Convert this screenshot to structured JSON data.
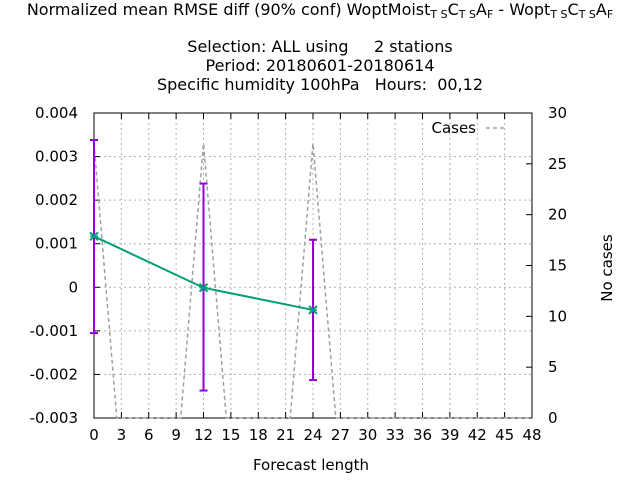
{
  "chart_data": {
    "type": "line",
    "title": {
      "line1": {
        "prefix": "Normalized mean RMSE diff (90% conf) WoptMoist",
        "sub1": "T S",
        "mid1": "C",
        "sub2": "T S",
        "mid2": "A",
        "sub3": "F",
        "join": " - Wopt",
        "sub4": "T S",
        "mid3": "C",
        "sub5": "T S",
        "mid4": "A",
        "sub6": "F"
      },
      "line2": "Selection: ALL using     2 stations",
      "line3": "Period: 20180601-20180614",
      "line4": "Specific humidity 100hPa   Hours:  00,12"
    },
    "xlabel": "Forecast length",
    "ylabel": "",
    "y2label": "No cases",
    "xlim": [
      0,
      48
    ],
    "ylim": [
      -0.003,
      0.004
    ],
    "y2lim": [
      0,
      30
    ],
    "xticks": [
      "0",
      "3",
      "6",
      "9",
      "12",
      "15",
      "18",
      "21",
      "24",
      "27",
      "30",
      "33",
      "36",
      "39",
      "42",
      "45",
      "48"
    ],
    "yticks": [
      "0.004",
      "0.003",
      "0.002",
      "0.001",
      "0",
      "-0.001",
      "-0.002",
      "-0.003"
    ],
    "y2ticks": [
      "30",
      "25",
      "20",
      "15",
      "10",
      "5",
      "0"
    ],
    "grid": true,
    "legend_position": "top-right",
    "series": [
      {
        "name": "",
        "color": "#009e73",
        "errorbar_color": "#9400d3",
        "x": [
          0,
          12,
          24
        ],
        "y": [
          0.00117,
          -1e-05,
          -0.00052
        ],
        "err_low": [
          -0.00105,
          -0.00237,
          -0.00213
        ],
        "err_high": [
          0.00338,
          0.00238,
          0.00109
        ]
      },
      {
        "name": "Cases",
        "color": "#a0a0a0",
        "dashed": true,
        "axis": "y2",
        "x": [
          0,
          2.5,
          9.5,
          12,
          14.5,
          21.5,
          24,
          26.5,
          48
        ],
        "y": [
          27,
          0,
          0,
          27,
          0,
          0,
          27,
          0,
          0
        ]
      }
    ]
  }
}
